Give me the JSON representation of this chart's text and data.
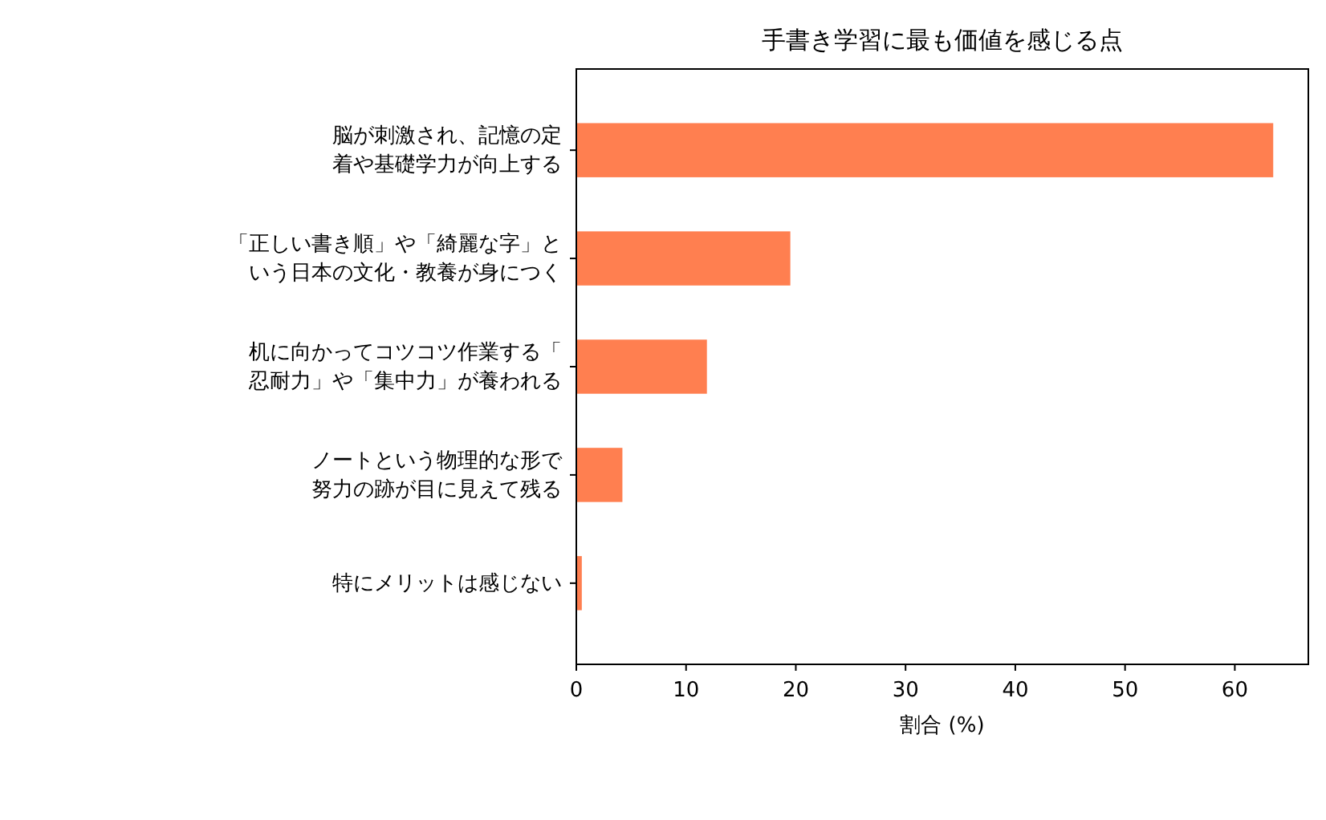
{
  "chart_data": {
    "type": "bar",
    "orientation": "horizontal",
    "title": "手書き学習に最も価値を感じる点",
    "xlabel": "割合 (%)",
    "categories": [
      "脳が刺激され、記憶の定着や基礎学力が向上する",
      "「正しい書き順」や「綺麗な字」という日本の文化・教養が身につく",
      "机に向かってコツコツ作業する「忍耐力」や「集中力」が養われる",
      "ノートという物理的な形で努力の跡が目に見えて残る",
      "特にメリットは感じない"
    ],
    "values": [
      63.5,
      19.5,
      11.9,
      4.2,
      0.5
    ],
    "color": "#ff7f50",
    "xlim": [
      0,
      66.7
    ],
    "xticks": [
      0,
      10,
      20,
      30,
      40,
      50,
      60
    ],
    "grid": false
  }
}
